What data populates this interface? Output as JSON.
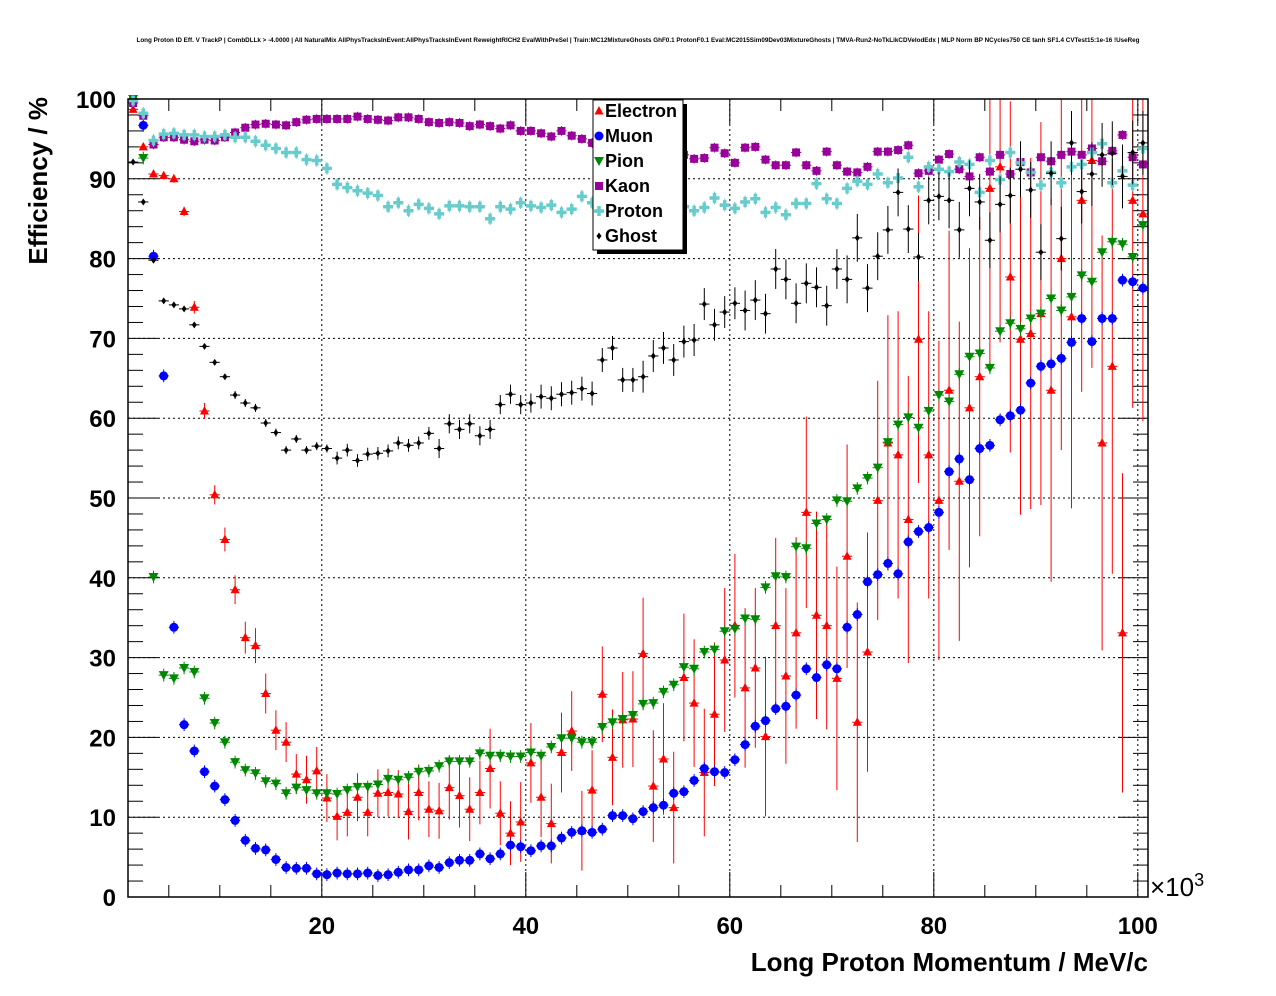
{
  "chart_data": {
    "type": "scatter",
    "title": "Long Proton ID Eff. V TrackP | CombDLLk > -4.0000 | All NaturalMix AllPhysTracksInEvent:AllPhysTracksInEvent ReweightRICH2 EvalWithPreSel | Train:MC12MixtureGhosts GhF0.1 ProtonF0.1 Eval:MC2015Sim09Dev03MixtureGhosts | TMVA-Run2-NoTkLikCDVelodEdx | MLP Norm BP NCycles750 CE tanh SF1.4 CVTest15:1e-16 !UseReg",
    "xlabel": "Long Proton Momentum / MeV/c",
    "x_multiplier": "×10",
    "x_multiplier_exp": "3",
    "ylabel": "Efficiency / %",
    "xlim": [
      1,
      101
    ],
    "ylim": [
      0,
      100
    ],
    "x_bin_start": 1.5,
    "x_bin_width": 1,
    "xticks": [
      20,
      40,
      60,
      80,
      100
    ],
    "yticks": [
      0,
      10,
      20,
      30,
      40,
      50,
      60,
      70,
      80,
      90,
      100
    ],
    "grid": true,
    "legend_position": "top-center",
    "series": [
      {
        "name": "Electron",
        "marker": "triangle-up",
        "color": "#ff0000",
        "values": [
          98.7,
          94.0,
          90.6,
          90.4,
          90.0,
          85.9,
          73.9,
          60.9,
          50.4,
          44.8,
          38.5,
          32.5,
          31.5,
          25.5,
          20.9,
          19.4,
          15.4,
          14.7,
          15.8,
          12.4,
          10.1,
          10.6,
          12.5,
          10.6,
          13.0,
          13.1,
          12.9,
          10.7,
          13.1,
          11.0,
          10.8,
          13.7,
          12.7,
          11.0,
          13.1,
          16.1,
          10.5,
          8.0,
          9.4,
          16.8,
          12.5,
          9.2,
          18.1,
          20.8,
          8.3,
          13.4,
          25.4,
          17.5,
          22.2,
          22.3,
          30.5,
          13.9,
          17.3,
          11.2,
          27.5,
          24.3,
          15.6,
          22.9,
          29.7,
          34.0,
          26.2,
          28.7,
          20.1,
          34.0,
          27.7,
          33.1,
          48.2,
          35.3,
          34.0,
          27.4,
          42.7,
          21.9,
          30.7,
          49.7,
          56.9,
          55.4,
          47.3,
          69.9,
          55.4,
          49.7,
          63.5,
          52.1,
          61.3,
          65.2,
          88.8,
          91.5,
          77.7,
          69.9,
          70.6,
          73.1,
          63.5,
          80.0,
          72.7,
          87.3,
          92.3,
          56.9,
          66.5,
          33.1,
          87.3,
          85.6
        ],
        "yerr": [
          0.3,
          0.4,
          0.4,
          0.4,
          0.5,
          0.6,
          0.8,
          1.0,
          1.2,
          1.5,
          1.8,
          2.0,
          2.2,
          2.5,
          2.5,
          2.5,
          2.5,
          3,
          3,
          3,
          3,
          3,
          3,
          3,
          3,
          3,
          3,
          3.5,
          3.5,
          3.5,
          3.5,
          4,
          4,
          4,
          4,
          5,
          4,
          4,
          5,
          5,
          5,
          5,
          5,
          5,
          5,
          5,
          6,
          6,
          6,
          6,
          7,
          7,
          7,
          7,
          8,
          8,
          8,
          9,
          9,
          9,
          10,
          10,
          10,
          11,
          11,
          12,
          12,
          13,
          13,
          14,
          14,
          15,
          15,
          15,
          16,
          18,
          18,
          18,
          18,
          20,
          20,
          20,
          20,
          20,
          22,
          22,
          22,
          22,
          22,
          24,
          24,
          24,
          24,
          24,
          26,
          26,
          26,
          20,
          26,
          26
        ]
      },
      {
        "name": "Muon",
        "marker": "circle",
        "color": "#0000ff",
        "values": [
          99.9,
          96.7,
          80.3,
          65.3,
          33.8,
          21.6,
          18.3,
          15.7,
          13.9,
          12.2,
          9.6,
          7.1,
          6.1,
          5.9,
          4.7,
          3.7,
          3.6,
          3.6,
          2.9,
          2.8,
          3.0,
          2.9,
          2.9,
          3.0,
          2.7,
          2.8,
          3.1,
          3.4,
          3.4,
          3.9,
          3.7,
          4.3,
          4.6,
          4.6,
          5.4,
          4.8,
          5.4,
          6.5,
          6.3,
          5.8,
          6.4,
          6.4,
          7.4,
          8.1,
          8.3,
          8.1,
          8.5,
          10.2,
          10.2,
          9.8,
          10.7,
          11.2,
          11.5,
          13.0,
          13.2,
          14.6,
          16.1,
          15.7,
          15.6,
          17.2,
          19.1,
          21.4,
          22.1,
          23.6,
          23.9,
          25.3,
          28.6,
          27.5,
          29.1,
          28.6,
          33.8,
          35.4,
          39.5,
          40.4,
          41.8,
          40.5,
          44.5,
          45.8,
          46.3,
          48.2,
          53.3,
          54.9,
          52.3,
          56.2,
          56.6,
          59.8,
          60.3,
          61.0,
          64.4,
          66.5,
          66.8,
          67.5,
          69.5,
          72.5,
          69.6,
          72.5,
          72.5,
          77.3,
          77.1,
          76.3
        ],
        "yerr": 0.8
      },
      {
        "name": "Pion",
        "marker": "triangle-down",
        "color": "#008800",
        "values": [
          100.0,
          92.6,
          40.1,
          27.8,
          27.4,
          28.7,
          28.2,
          24.9,
          21.8,
          19.4,
          16.9,
          15.9,
          15.5,
          14.5,
          14.2,
          13.0,
          13.7,
          13.4,
          13.0,
          13.0,
          12.9,
          13.4,
          13.8,
          13.8,
          14.1,
          14.8,
          14.7,
          15.0,
          15.7,
          15.8,
          16.4,
          17.0,
          17.0,
          17.0,
          18.0,
          17.7,
          17.7,
          17.6,
          17.6,
          18.1,
          17.7,
          18.8,
          19.9,
          19.9,
          19.4,
          19.4,
          21.3,
          21.9,
          22.3,
          22.8,
          24.2,
          24.3,
          25.7,
          26.6,
          28.8,
          28.6,
          30.7,
          31.0,
          33.3,
          33.6,
          34.9,
          34.8,
          38.8,
          40.2,
          40.1,
          43.9,
          43.7,
          46.8,
          47.3,
          49.7,
          49.6,
          51.2,
          52.5,
          53.8,
          57.0,
          59.2,
          60.1,
          58.8,
          60.9,
          62.9,
          62.1,
          65.5,
          67.7,
          68.1,
          66.3,
          70.9,
          71.9,
          71.2,
          72.5,
          73.1,
          75.0,
          73.5,
          75.2,
          77.9,
          77.1,
          80.8,
          82.1,
          81.8,
          80.2,
          84.2
        ],
        "yerr": 0.8
      },
      {
        "name": "Kaon",
        "marker": "square",
        "color": "#990099",
        "values": [
          99.5,
          97.9,
          94.3,
          95.2,
          95.2,
          94.9,
          94.7,
          94.9,
          94.8,
          95.2,
          95.8,
          96.4,
          96.8,
          96.9,
          96.8,
          96.7,
          97.1,
          97.4,
          97.5,
          97.5,
          97.5,
          97.5,
          97.8,
          97.5,
          97.4,
          97.3,
          97.7,
          97.7,
          97.5,
          97.1,
          97.0,
          97.1,
          97.0,
          96.6,
          96.8,
          96.6,
          96.3,
          96.7,
          96.0,
          96.0,
          95.7,
          95.3,
          96.0,
          95.4,
          95.0,
          94.5,
          94.3,
          94.0,
          94.2,
          93.8,
          93.6,
          93.9,
          93.4,
          93.2,
          93.0,
          92.5,
          92.6,
          93.9,
          93.2,
          92.0,
          93.9,
          94.0,
          92.4,
          91.7,
          91.7,
          93.3,
          91.7,
          91.0,
          93.4,
          91.7,
          90.9,
          90.8,
          91.5,
          93.4,
          93.4,
          93.6,
          94.2,
          90.7,
          91.0,
          92.4,
          93.1,
          91.2,
          90.3,
          92.7,
          90.9,
          93.0,
          90.6,
          92.1,
          90.8,
          92.7,
          92.2,
          93.0,
          93.4,
          93.0,
          93.8,
          92.2,
          93.5,
          95.5,
          92.7,
          91.8
        ],
        "yerr": 0.6
      },
      {
        "name": "Proton",
        "marker": "cross",
        "color": "#66cccc",
        "values": [
          99.8,
          98.2,
          94.8,
          95.6,
          95.7,
          95.5,
          95.5,
          95.3,
          95.3,
          95.5,
          95.2,
          95.2,
          94.7,
          94.2,
          93.8,
          93.3,
          93.3,
          92.4,
          92.3,
          91.3,
          89.3,
          88.9,
          88.5,
          88.2,
          87.9,
          86.5,
          87.0,
          86.0,
          86.8,
          86.3,
          85.6,
          86.6,
          86.6,
          86.5,
          86.5,
          85.0,
          86.5,
          86.2,
          87.0,
          86.6,
          86.4,
          86.7,
          85.8,
          86.2,
          87.8,
          87.0,
          86.8,
          86.5,
          87.0,
          86.4,
          86.8,
          86.2,
          86.6,
          86.0,
          86.5,
          86.0,
          86.4,
          87.6,
          86.7,
          86.3,
          87.1,
          87.5,
          85.8,
          86.4,
          85.5,
          86.9,
          86.9,
          89.4,
          87.5,
          86.9,
          88.8,
          89.7,
          89.3,
          90.6,
          89.5,
          90.1,
          92.7,
          89.0,
          91.5,
          91.2,
          90.9,
          92.1,
          91.8,
          88.3,
          92.3,
          89.9,
          93.3,
          92.0,
          90.8,
          89.2,
          90.8,
          89.5,
          91.5,
          91.8,
          93.3,
          94.4,
          89.5,
          91.0,
          89.2,
          93.8
        ],
        "yerr": 0.8
      },
      {
        "name": "Ghost",
        "marker": "diamond",
        "color": "#000000",
        "values": [
          92.1,
          87.1,
          79.8,
          74.7,
          74.2,
          73.7,
          71.7,
          69.0,
          67.0,
          65.2,
          62.9,
          61.9,
          61.3,
          59.4,
          58.2,
          56.0,
          57.4,
          56.0,
          56.5,
          56.2,
          55.0,
          56.0,
          54.7,
          55.5,
          55.6,
          55.9,
          56.9,
          56.6,
          56.9,
          58.1,
          56.2,
          59.3,
          58.6,
          59.3,
          57.8,
          58.6,
          61.7,
          63.0,
          61.7,
          61.9,
          62.7,
          62.5,
          63.0,
          63.2,
          63.7,
          63.1,
          67.3,
          68.8,
          64.8,
          64.8,
          65.2,
          67.8,
          68.8,
          67.3,
          69.6,
          69.8,
          74.3,
          71.7,
          73.3,
          74.4,
          73.5,
          74.8,
          73.1,
          78.7,
          77.4,
          74.4,
          76.9,
          76.4,
          74.1,
          78.7,
          77.4,
          82.6,
          76.3,
          80.3,
          83.6,
          88.3,
          83.7,
          80.2,
          87.3,
          87.8,
          87.3,
          83.6,
          88.8,
          87.1,
          82.3,
          86.8,
          87.9,
          91.2,
          88.6,
          80.8,
          90.7,
          82.5,
          94.5,
          88.4,
          90.6,
          93.0,
          93.2,
          90.3,
          93.3,
          94.5
        ],
        "yerr": [
          0.3,
          0.3,
          0.3,
          0.3,
          0.3,
          0.3,
          0.3,
          0.3,
          0.3,
          0.3,
          0.5,
          0.5,
          0.5,
          0.5,
          0.5,
          0.5,
          0.5,
          0.5,
          0.5,
          0.5,
          0.8,
          0.8,
          0.8,
          0.8,
          0.8,
          0.8,
          0.8,
          0.8,
          0.8,
          0.8,
          1.2,
          1.2,
          1.2,
          1.2,
          1.2,
          1.2,
          1.2,
          1.2,
          1.2,
          1.2,
          1.5,
          1.5,
          1.5,
          1.5,
          1.5,
          1.5,
          1.5,
          1.5,
          1.5,
          1.5,
          2,
          2,
          2,
          2,
          2,
          2,
          2,
          2,
          2,
          2,
          2.5,
          2.5,
          2.5,
          2.5,
          2.5,
          2.5,
          2.5,
          2.5,
          2.5,
          2.5,
          3,
          3,
          3,
          3,
          3,
          3,
          3,
          3,
          3,
          3,
          3.5,
          3.5,
          3.5,
          3.5,
          3.5,
          3.5,
          3.5,
          3.5,
          3.5,
          3.5,
          4,
          4,
          4,
          4,
          4,
          4,
          4,
          4,
          4,
          4
        ]
      }
    ]
  }
}
